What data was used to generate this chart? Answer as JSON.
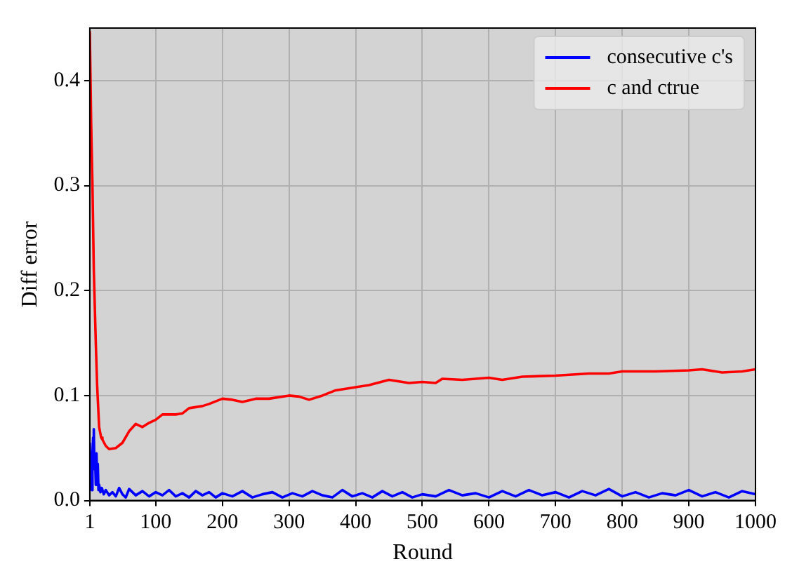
{
  "chart_data": {
    "type": "line",
    "xlabel": "Round",
    "ylabel": "Diff error",
    "xlim": [
      1,
      1000
    ],
    "ylim": [
      0,
      0.45
    ],
    "xticks": [
      1,
      100,
      200,
      300,
      400,
      500,
      600,
      700,
      800,
      900,
      1000
    ],
    "yticks": [
      {
        "value": 0,
        "label": "0.0"
      },
      {
        "value": 0.1,
        "label": "0.1"
      },
      {
        "value": 0.2,
        "label": "0.2"
      },
      {
        "value": 0.3,
        "label": "0.3"
      },
      {
        "value": 0.4,
        "label": "0.4"
      }
    ],
    "grid": true,
    "legend": "top right",
    "marker": "none",
    "line_style": "solid",
    "series": [
      {
        "name": "consecutive c's",
        "color": "#0000ff",
        "x": [
          1,
          2,
          3,
          4,
          5,
          6,
          7,
          8,
          9,
          10,
          11,
          12,
          13,
          14,
          15,
          17,
          19,
          22,
          25,
          30,
          35,
          40,
          45,
          50,
          55,
          60,
          70,
          80,
          90,
          100,
          110,
          120,
          130,
          140,
          150,
          160,
          170,
          180,
          190,
          200,
          215,
          230,
          245,
          260,
          275,
          290,
          305,
          320,
          335,
          350,
          365,
          380,
          395,
          410,
          425,
          440,
          455,
          470,
          485,
          500,
          520,
          540,
          560,
          580,
          600,
          620,
          640,
          660,
          680,
          700,
          720,
          740,
          760,
          780,
          800,
          820,
          840,
          860,
          880,
          900,
          920,
          940,
          960,
          980,
          1000
        ],
        "values": [
          0.055,
          0.02,
          0.035,
          0.01,
          0.045,
          0.06,
          0.068,
          0.03,
          0.04,
          0.015,
          0.045,
          0.02,
          0.035,
          0.01,
          0.015,
          0.008,
          0.012,
          0.006,
          0.01,
          0.005,
          0.008,
          0.004,
          0.012,
          0.006,
          0.003,
          0.011,
          0.005,
          0.009,
          0.004,
          0.008,
          0.005,
          0.01,
          0.004,
          0.007,
          0.003,
          0.009,
          0.005,
          0.008,
          0.003,
          0.007,
          0.004,
          0.009,
          0.003,
          0.006,
          0.008,
          0.003,
          0.007,
          0.004,
          0.009,
          0.005,
          0.003,
          0.01,
          0.004,
          0.007,
          0.003,
          0.009,
          0.004,
          0.008,
          0.003,
          0.006,
          0.004,
          0.01,
          0.005,
          0.007,
          0.003,
          0.009,
          0.004,
          0.01,
          0.005,
          0.008,
          0.003,
          0.009,
          0.005,
          0.011,
          0.004,
          0.008,
          0.003,
          0.007,
          0.005,
          0.01,
          0.004,
          0.008,
          0.003,
          0.009,
          0.006
        ]
      },
      {
        "name": "c and ctrue",
        "color": "#ff0000",
        "x": [
          1,
          3,
          5,
          7,
          10,
          12,
          15,
          18,
          20,
          25,
          30,
          40,
          50,
          60,
          70,
          80,
          90,
          100,
          110,
          130,
          140,
          150,
          170,
          180,
          200,
          215,
          230,
          250,
          270,
          300,
          315,
          330,
          350,
          370,
          400,
          420,
          450,
          480,
          500,
          520,
          530,
          560,
          600,
          620,
          650,
          700,
          750,
          780,
          800,
          850,
          900,
          920,
          950,
          980,
          1000
        ],
        "values": [
          0.447,
          0.36,
          0.3,
          0.22,
          0.15,
          0.11,
          0.07,
          0.06,
          0.058,
          0.052,
          0.049,
          0.05,
          0.055,
          0.066,
          0.073,
          0.07,
          0.074,
          0.077,
          0.082,
          0.082,
          0.083,
          0.088,
          0.09,
          0.092,
          0.097,
          0.096,
          0.094,
          0.097,
          0.097,
          0.1,
          0.099,
          0.096,
          0.1,
          0.105,
          0.108,
          0.11,
          0.115,
          0.112,
          0.113,
          0.112,
          0.116,
          0.115,
          0.117,
          0.115,
          0.118,
          0.119,
          0.121,
          0.121,
          0.123,
          0.123,
          0.124,
          0.125,
          0.122,
          0.123,
          0.125
        ]
      }
    ]
  }
}
